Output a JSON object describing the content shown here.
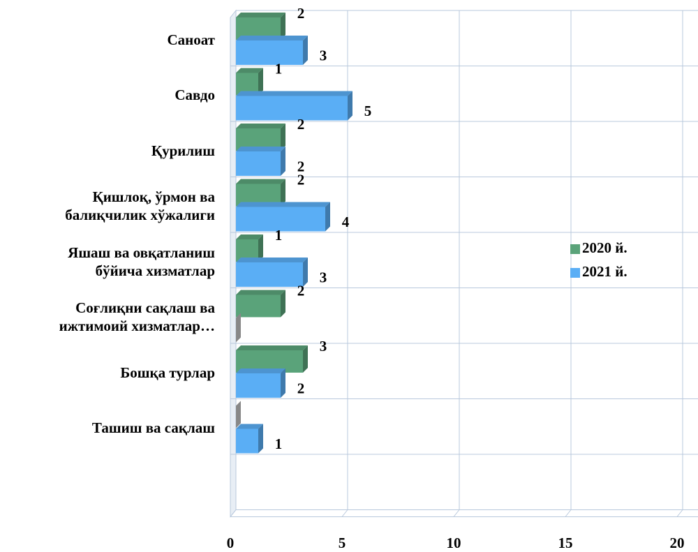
{
  "chart_data": {
    "type": "bar3d",
    "orientation": "horizontal",
    "categories": [
      "Саноат",
      "Савдо",
      "Қурилиш",
      "Қишлоқ, ўрмон ва\nбалиқчилик хўжалиги",
      "Яшаш ва овқатланиш\nбўйича хизматлар",
      "Соғлиқни сақлаш ва\nижтимоий хизматлар…",
      "Бошқа турлар",
      "Ташиш ва сақлаш",
      null
    ],
    "series": [
      {
        "name": "2020 й.",
        "color": "#5aa37a",
        "values": [
          2,
          1,
          2,
          2,
          1,
          2,
          3,
          0,
          null
        ],
        "value_labels": [
          "2",
          "1",
          "2",
          "2",
          "1",
          "2",
          "3",
          null,
          null
        ]
      },
      {
        "name": "2021 й.",
        "color": "#5aaef5",
        "values": [
          3,
          5,
          2,
          4,
          3,
          0,
          2,
          1,
          null
        ],
        "value_labels": [
          "3",
          "5",
          "2",
          "4",
          "3",
          null,
          "2",
          "1",
          null
        ]
      }
    ],
    "xlim": [
      0,
      20
    ],
    "xticks": [
      0,
      5,
      10,
      15,
      20
    ],
    "grid": true,
    "legend": "right"
  }
}
